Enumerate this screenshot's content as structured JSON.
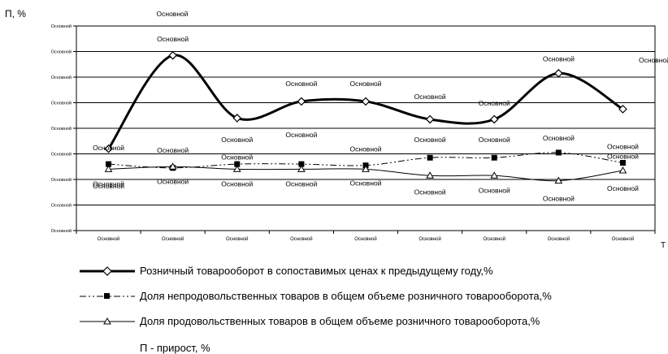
{
  "chart_data": {
    "type": "line",
    "ylabel": "П, %",
    "xlabel": "T",
    "ylim": [
      0,
      8
    ],
    "y_tick_labels": [
      "Основной",
      "Основной",
      "Основной",
      "Основной",
      "Основной",
      "Основной",
      "Основной",
      "Основной",
      "Основной"
    ],
    "categories": [
      "Основной",
      "Основной",
      "Основной",
      "Основной",
      "Основной",
      "Основной",
      "Основной",
      "Основной",
      "Основной"
    ],
    "grid": true,
    "legend_position": "bottom",
    "series": [
      {
        "name": "Розничный товарооборот в сопоставимых ценах к предыдущему году,%",
        "values": [
          3.2,
          6.85,
          4.4,
          5.05,
          5.05,
          4.35,
          4.35,
          6.15,
          4.75
        ],
        "data_labels": [
          "Основной",
          "Основной",
          "Основной",
          "Основной",
          "Основной",
          "Основной",
          "Основной",
          "Основной",
          "Основной"
        ],
        "color": "#000000",
        "marker": "diamond",
        "line_style": "solid-thick",
        "smooth": true
      },
      {
        "name": "Доля непродовольственных товаров в общем объеме розничного товарооборота,%",
        "values": [
          2.6,
          2.45,
          2.6,
          2.6,
          2.55,
          2.85,
          2.85,
          3.05,
          2.65
        ],
        "data_labels": [
          "Основной",
          "Основной",
          "Основной",
          "Основной",
          "Основной",
          "Основной",
          "Основной",
          "Основной",
          "Основной"
        ],
        "color": "#000000",
        "marker": "square",
        "line_style": "dash-dot-dot",
        "smooth": true
      },
      {
        "name": "Доля продовольственных товаров в общем объеме розничного товарооборота,%",
        "values": [
          2.4,
          2.5,
          2.4,
          2.4,
          2.4,
          2.15,
          2.15,
          1.95,
          2.35
        ],
        "data_labels": [
          "Основной",
          "Основной",
          "Основной",
          "Основной",
          "Основной",
          "Основной",
          "Основной",
          "Основной",
          "Основной"
        ],
        "color": "#000000",
        "marker": "triangle",
        "line_style": "solid-thin",
        "smooth": true
      }
    ],
    "footnote": "П - прирост, %",
    "chart_top_label": "Основной",
    "chart_right_label": "Основной"
  }
}
